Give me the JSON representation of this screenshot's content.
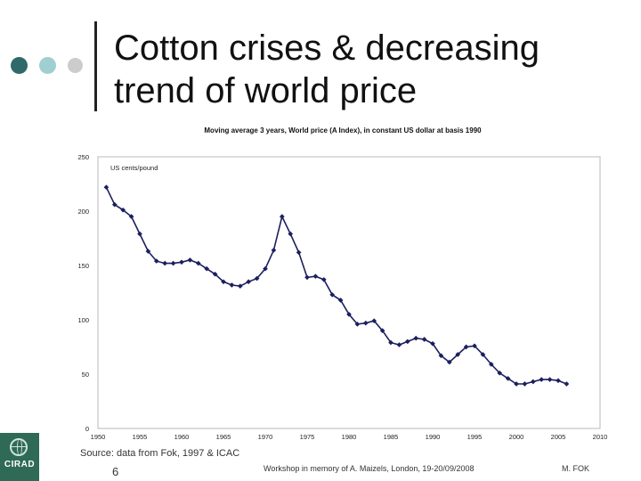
{
  "slide": {
    "title_line1": "Cotton crises & decreasing",
    "title_line2": "trend of world price",
    "source": "Source: data from Fok, 1997 & ICAC",
    "page_number": "6",
    "workshop": "Workshop in memory of A. Maizels, London, 19-20/09/2008",
    "author": "M. FOK",
    "logo_text": "CIRAD",
    "colors": {
      "dot1": "#2f6a6a",
      "dot2": "#9fcfd0",
      "dot3": "#cccccc",
      "series": "#1b1f5e",
      "logo": "#2f6a57"
    }
  },
  "chart_data": {
    "type": "line",
    "title": "Moving average 3 years, World price (A Index), in constant US dollar at basis 1990",
    "unit_label": "US cents/pound",
    "xlim": [
      1950,
      2010
    ],
    "ylim": [
      0,
      250
    ],
    "x_ticks": [
      "1950",
      "1955",
      "1960",
      "1965",
      "1970",
      "1975",
      "1980",
      "1985",
      "1990",
      "1995",
      "2000",
      "2005",
      "2010"
    ],
    "y_ticks": [
      "0",
      "50",
      "100",
      "150",
      "200",
      "250"
    ],
    "legend": "none",
    "grid": false,
    "series": [
      {
        "x": [
          1951,
          1952,
          1953,
          1954,
          1955,
          1956,
          1957,
          1958,
          1959,
          1960,
          1961,
          1962,
          1963,
          1964,
          1965,
          1966,
          1967,
          1968,
          1969,
          1970,
          1971,
          1972,
          1973,
          1974,
          1975,
          1976,
          1977,
          1978,
          1979,
          1980,
          1981,
          1982,
          1983,
          1984,
          1985,
          1986,
          1987,
          1988,
          1989,
          1990,
          1991,
          1992,
          1993,
          1994,
          1995,
          1996,
          1997,
          1998,
          1999,
          2000,
          2001,
          2002,
          2003,
          2004,
          2005,
          2006
        ],
        "y": [
          222,
          206,
          201,
          195,
          179,
          163,
          154,
          152,
          152,
          153,
          155,
          152,
          147,
          142,
          135,
          132,
          131,
          135,
          138,
          147,
          164,
          195,
          179,
          162,
          139,
          140,
          137,
          123,
          118,
          105,
          96,
          97,
          99,
          90,
          79,
          77,
          80,
          83,
          82,
          78,
          67,
          61,
          68,
          75,
          76,
          68,
          59,
          51,
          46,
          41,
          41,
          43,
          45,
          45,
          44,
          41
        ]
      }
    ]
  }
}
